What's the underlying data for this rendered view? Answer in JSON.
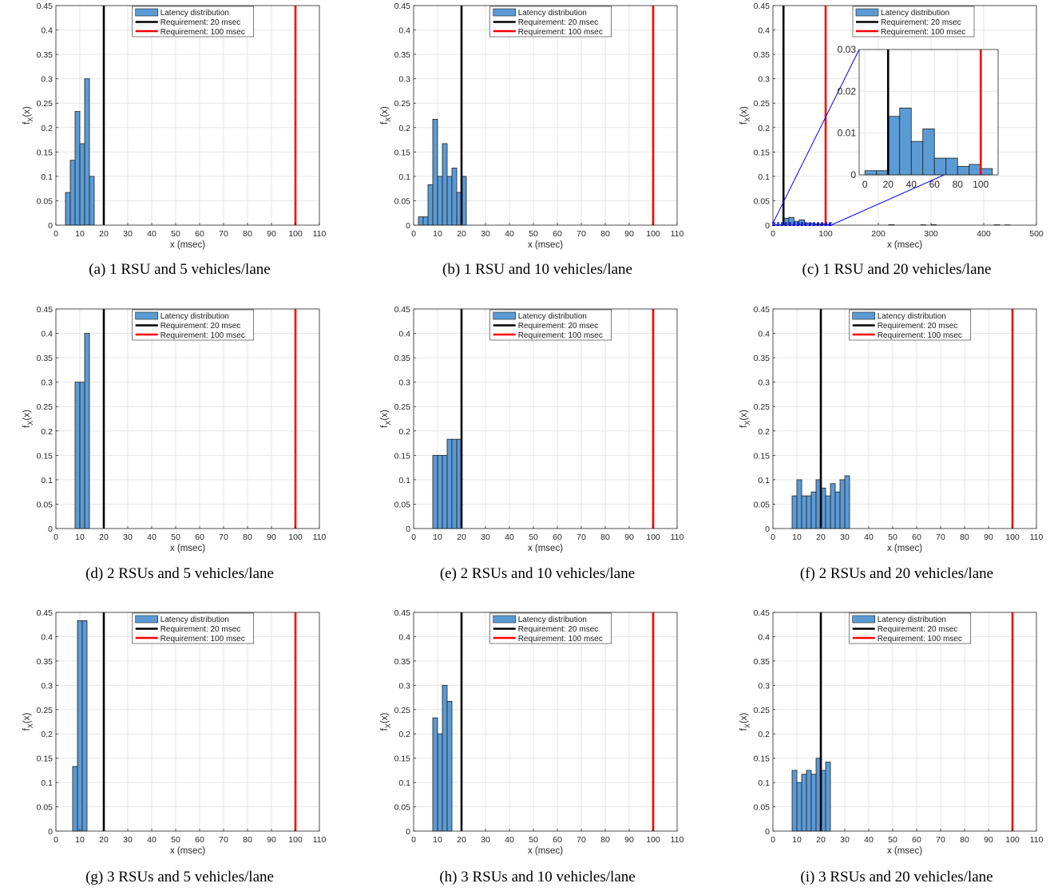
{
  "legend": {
    "latency": "Latency distribution",
    "req20": "Requirement: 20 msec",
    "req100": "Requirement: 100 msec"
  },
  "colors": {
    "bar_fill": "#5b9bd5",
    "bar_edge": "#1f1f1f",
    "req20_line": "#000000",
    "req100_line": "#ff0000",
    "zoom_box": "#0000ff",
    "grid": "#e6e6e6"
  },
  "chart_data": [
    {
      "type": "bar",
      "caption": "(a) 1 RSU and 5 vehicles/lane",
      "xlabel": "x (msec)",
      "ylabel": "f_X(x)",
      "xlim": [
        0,
        110
      ],
      "ylim": [
        0,
        0.45
      ],
      "xticks": [
        0,
        10,
        20,
        30,
        40,
        50,
        60,
        70,
        80,
        90,
        100,
        110
      ],
      "yticks": [
        0,
        0.05,
        0.1,
        0.15,
        0.2,
        0.25,
        0.3,
        0.35,
        0.4,
        0.45
      ],
      "grid": true,
      "legend_position": "top-center",
      "bin_width": 2,
      "bin_edges": [
        4,
        6,
        8,
        10,
        12,
        14
      ],
      "values": [
        0.067,
        0.133,
        0.233,
        0.167,
        0.3,
        0.1
      ],
      "requirements": [
        20,
        100
      ]
    },
    {
      "type": "bar",
      "caption": "(b) 1 RSU and 10 vehicles/lane",
      "xlabel": "x (msec)",
      "ylabel": "f_X(x)",
      "xlim": [
        0,
        110
      ],
      "ylim": [
        0,
        0.45
      ],
      "xticks": [
        0,
        10,
        20,
        30,
        40,
        50,
        60,
        70,
        80,
        90,
        100,
        110
      ],
      "yticks": [
        0,
        0.05,
        0.1,
        0.15,
        0.2,
        0.25,
        0.3,
        0.35,
        0.4,
        0.45
      ],
      "grid": true,
      "legend_position": "top-center",
      "bin_width": 2,
      "bin_edges": [
        2,
        4,
        6,
        8,
        10,
        12,
        14,
        16,
        18,
        20
      ],
      "values": [
        0.017,
        0.017,
        0.083,
        0.217,
        0.1,
        0.167,
        0.1,
        0.117,
        0.067,
        0.1
      ],
      "requirements": [
        20,
        100
      ]
    },
    {
      "type": "bar",
      "caption": "(c) 1 RSU and 20 vehicles/lane",
      "xlabel": "x (msec)",
      "ylabel": "f_X(x)",
      "xlim": [
        0,
        500
      ],
      "ylim": [
        0,
        0.45
      ],
      "xticks": [
        0,
        100,
        200,
        300,
        400,
        500
      ],
      "yticks": [
        0,
        0.05,
        0.1,
        0.15,
        0.2,
        0.25,
        0.3,
        0.35,
        0.4,
        0.45
      ],
      "grid": true,
      "legend_position": "top-right",
      "bin_width": 10,
      "bin_edges": [
        0,
        10,
        20,
        30,
        40,
        50,
        60,
        70,
        80,
        90,
        100,
        220,
        280,
        300,
        420,
        440
      ],
      "values": [
        0.001,
        0.001,
        0.014,
        0.016,
        0.008,
        0.011,
        0.004,
        0.004,
        0.002,
        0.0025,
        0.0015,
        0.001,
        0.0008,
        0.001,
        0.0008,
        0.0006
      ],
      "requirements": [
        20,
        100
      ],
      "inset": {
        "xlim": [
          -5,
          115
        ],
        "ylim": [
          0,
          0.03
        ],
        "xticks": [
          0,
          20,
          40,
          60,
          80,
          100
        ],
        "yticks": [
          0,
          0.01,
          0.02,
          0.03
        ],
        "bin_width": 10,
        "bin_edges": [
          0,
          10,
          20,
          30,
          40,
          50,
          60,
          70,
          80,
          90,
          100
        ],
        "values": [
          0.001,
          0.001,
          0.014,
          0.016,
          0.008,
          0.011,
          0.004,
          0.004,
          0.002,
          0.0025,
          0.0015
        ],
        "zoom_region_x": [
          0,
          110
        ],
        "zoom_region_y": [
          0,
          0.004
        ]
      }
    },
    {
      "type": "bar",
      "caption": "(d) 2 RSUs and 5 vehicles/lane",
      "xlabel": "x (msec)",
      "ylabel": "f_X(x)",
      "xlim": [
        0,
        110
      ],
      "ylim": [
        0,
        0.45
      ],
      "xticks": [
        0,
        10,
        20,
        30,
        40,
        50,
        60,
        70,
        80,
        90,
        100,
        110
      ],
      "yticks": [
        0,
        0.05,
        0.1,
        0.15,
        0.2,
        0.25,
        0.3,
        0.35,
        0.4,
        0.45
      ],
      "grid": true,
      "legend_position": "top-center",
      "bin_width": 2,
      "bin_edges": [
        8,
        10,
        12
      ],
      "values": [
        0.3,
        0.3,
        0.4
      ],
      "requirements": [
        20,
        100
      ]
    },
    {
      "type": "bar",
      "caption": "(e) 2 RSUs and 10 vehicles/lane",
      "xlabel": "x (msec)",
      "ylabel": "f_X(x)",
      "xlim": [
        0,
        110
      ],
      "ylim": [
        0,
        0.45
      ],
      "xticks": [
        0,
        10,
        20,
        30,
        40,
        50,
        60,
        70,
        80,
        90,
        100,
        110
      ],
      "yticks": [
        0,
        0.05,
        0.1,
        0.15,
        0.2,
        0.25,
        0.3,
        0.35,
        0.4,
        0.45
      ],
      "grid": true,
      "legend_position": "top-center",
      "bin_width": 2,
      "bin_edges": [
        8,
        10,
        12,
        14,
        16,
        18
      ],
      "values": [
        0.15,
        0.15,
        0.15,
        0.183,
        0.183,
        0.183
      ],
      "requirements": [
        20,
        100
      ]
    },
    {
      "type": "bar",
      "caption": "(f) 2 RSUs and 20 vehicles/lane",
      "xlabel": "x (msec)",
      "ylabel": "f_X(x)",
      "xlim": [
        0,
        110
      ],
      "ylim": [
        0,
        0.45
      ],
      "xticks": [
        0,
        10,
        20,
        30,
        40,
        50,
        60,
        70,
        80,
        90,
        100,
        110
      ],
      "yticks": [
        0,
        0.05,
        0.1,
        0.15,
        0.2,
        0.25,
        0.3,
        0.35,
        0.4,
        0.45
      ],
      "grid": true,
      "legend_position": "top-center",
      "bin_width": 2,
      "bin_edges": [
        8,
        10,
        12,
        14,
        16,
        18,
        20,
        22,
        24,
        26,
        28,
        30
      ],
      "values": [
        0.067,
        0.1,
        0.067,
        0.067,
        0.075,
        0.1,
        0.083,
        0.067,
        0.092,
        0.075,
        0.1,
        0.108
      ],
      "requirements": [
        20,
        100
      ]
    },
    {
      "type": "bar",
      "caption": "(g) 3 RSUs and 5 vehicles/lane",
      "xlabel": "x (msec)",
      "ylabel": "f_X(x)",
      "xlim": [
        0,
        110
      ],
      "ylim": [
        0,
        0.45
      ],
      "xticks": [
        0,
        10,
        20,
        30,
        40,
        50,
        60,
        70,
        80,
        90,
        100,
        110
      ],
      "yticks": [
        0,
        0.05,
        0.1,
        0.15,
        0.2,
        0.25,
        0.3,
        0.35,
        0.4,
        0.45
      ],
      "grid": true,
      "legend_position": "top-center",
      "bin_width": 2,
      "bin_edges": [
        7,
        9,
        11
      ],
      "values": [
        0.133,
        0.433,
        0.433
      ],
      "requirements": [
        20,
        100
      ]
    },
    {
      "type": "bar",
      "caption": "(h) 3 RSUs and 10 vehicles/lane",
      "xlabel": "x (msec)",
      "ylabel": "f_X(x)",
      "xlim": [
        0,
        110
      ],
      "ylim": [
        0,
        0.45
      ],
      "xticks": [
        0,
        10,
        20,
        30,
        40,
        50,
        60,
        70,
        80,
        90,
        100,
        110
      ],
      "yticks": [
        0,
        0.05,
        0.1,
        0.15,
        0.2,
        0.25,
        0.3,
        0.35,
        0.4,
        0.45
      ],
      "grid": true,
      "legend_position": "top-center",
      "bin_width": 2,
      "bin_edges": [
        8,
        10,
        12,
        14
      ],
      "values": [
        0.233,
        0.2,
        0.3,
        0.267
      ],
      "requirements": [
        20,
        100
      ]
    },
    {
      "type": "bar",
      "caption": "(i) 3 RSUs and 20 vehicles/lane",
      "xlabel": "x (msec)",
      "ylabel": "f_X(x)",
      "xlim": [
        0,
        110
      ],
      "ylim": [
        0,
        0.45
      ],
      "xticks": [
        0,
        10,
        20,
        30,
        40,
        50,
        60,
        70,
        80,
        90,
        100,
        110
      ],
      "yticks": [
        0,
        0.05,
        0.1,
        0.15,
        0.2,
        0.25,
        0.3,
        0.35,
        0.4,
        0.45
      ],
      "grid": true,
      "legend_position": "top-center",
      "bin_width": 2,
      "bin_edges": [
        8,
        10,
        12,
        14,
        16,
        18,
        20,
        22
      ],
      "values": [
        0.125,
        0.1,
        0.117,
        0.125,
        0.117,
        0.15,
        0.125,
        0.142
      ],
      "requirements": [
        20,
        100
      ]
    }
  ]
}
